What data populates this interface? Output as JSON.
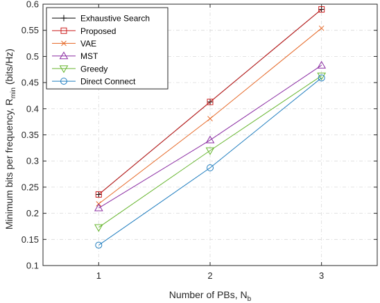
{
  "chart_data": {
    "type": "line",
    "xlabel": "Number of PBs, N",
    "xlabel_sub": "b",
    "ylabel": "Minimum bits per frequency, R",
    "ylabel_sub": "min",
    "ylabel_unit": " (bits/Hz)",
    "x": [
      1,
      2,
      3
    ],
    "xlim": [
      0.5,
      3.5
    ],
    "ylim": [
      0.1,
      0.6
    ],
    "xticks": [
      1,
      2,
      3
    ],
    "yticks": [
      0.1,
      0.15,
      0.2,
      0.25,
      0.3,
      0.35,
      0.4,
      0.45,
      0.5,
      0.55,
      0.6
    ],
    "ytick_labels": [
      "0.1",
      "0.15",
      "0.2",
      "0.25",
      "0.3",
      "0.35",
      "0.4",
      "0.45",
      "0.5",
      "0.55",
      "0.6"
    ],
    "grid": true,
    "legend_position": "top-left",
    "series": [
      {
        "name": "Exhaustive Search",
        "values": [
          0.236,
          0.413,
          0.59
        ],
        "color": "#000000",
        "marker": "plus"
      },
      {
        "name": "Proposed",
        "values": [
          0.236,
          0.413,
          0.59
        ],
        "color": "#cc1f1f",
        "marker": "square"
      },
      {
        "name": "VAE",
        "values": [
          0.218,
          0.381,
          0.554
        ],
        "color": "#e66a2a",
        "marker": "x"
      },
      {
        "name": "MST",
        "values": [
          0.21,
          0.34,
          0.483
        ],
        "color": "#8a2ba2",
        "marker": "triangle-up"
      },
      {
        "name": "Greedy",
        "values": [
          0.173,
          0.32,
          0.463
        ],
        "color": "#66b52e",
        "marker": "triangle-down"
      },
      {
        "name": "Direct Connect",
        "values": [
          0.139,
          0.287,
          0.459
        ],
        "color": "#1f7dbf",
        "marker": "circle"
      }
    ]
  }
}
